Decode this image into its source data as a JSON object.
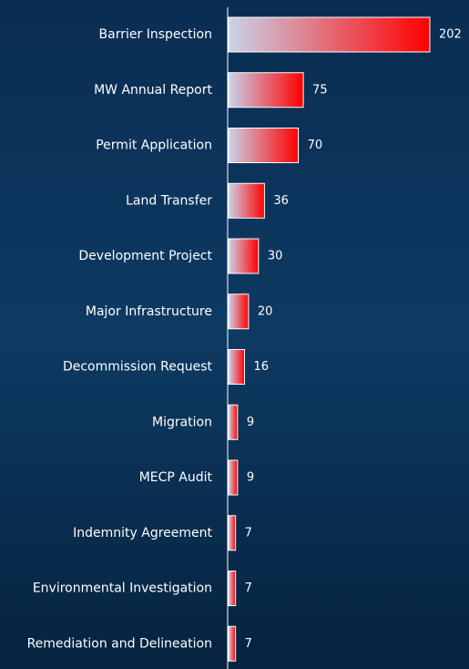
{
  "chart_data": {
    "type": "barh",
    "categories": [
      "Barrier Inspection",
      "MW Annual Report",
      "Permit Application",
      "Land Transfer",
      "Development Project",
      "Major Infrastructure",
      "Decommission Request",
      "Migration",
      "MECP Audit",
      "Indemnity Agreement",
      "Environmental Investigation",
      "Remediation and Delineation"
    ],
    "values": [
      202,
      75,
      70,
      36,
      30,
      20,
      16,
      9,
      9,
      7,
      7,
      7
    ],
    "color": "#ff0000",
    "gradient_start": "#c9d3ea"
  }
}
